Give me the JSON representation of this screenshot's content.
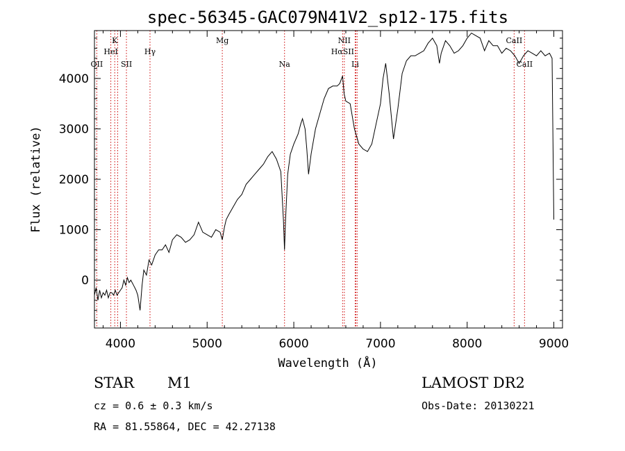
{
  "chart_data": {
    "type": "line",
    "title": "spec-56345-GAC079N41V2_sp12-175.fits",
    "xlabel": "Wavelength (Å)",
    "ylabel": "Flux (relative)",
    "xlim": [
      3700,
      9100
    ],
    "ylim": [
      -950,
      4950
    ],
    "xticks": [
      4000,
      5000,
      6000,
      7000,
      8000,
      9000
    ],
    "yticks": [
      0,
      1000,
      2000,
      3000,
      4000
    ],
    "grid": false,
    "line_color": "#000000",
    "marker_color": "#cc0000",
    "series": [
      {
        "x": [
          3700,
          3720,
          3740,
          3760,
          3780,
          3800,
          3820,
          3840,
          3860,
          3880,
          3900,
          3920,
          3940,
          3960,
          3980,
          4000,
          4020,
          4040,
          4060,
          4080,
          4100,
          4120,
          4150,
          4180,
          4200,
          4226,
          4250,
          4270,
          4300,
          4330,
          4360,
          4400,
          4440,
          4480,
          4520,
          4560,
          4600,
          4650,
          4700,
          4750,
          4800,
          4850,
          4900,
          4950,
          5000,
          5050,
          5100,
          5150,
          5175,
          5200,
          5220,
          5250,
          5300,
          5350,
          5400,
          5450,
          5500,
          5550,
          5600,
          5650,
          5700,
          5750,
          5800,
          5850,
          5880,
          5893,
          5905,
          5930,
          5960,
          6000,
          6050,
          6080,
          6100,
          6130,
          6150,
          6170,
          6200,
          6250,
          6300,
          6350,
          6400,
          6450,
          6500,
          6530,
          6563,
          6580,
          6600,
          6650,
          6700,
          6750,
          6800,
          6850,
          6900,
          6950,
          7000,
          7030,
          7060,
          7100,
          7150,
          7200,
          7250,
          7300,
          7350,
          7400,
          7450,
          7500,
          7550,
          7600,
          7650,
          7680,
          7700,
          7750,
          7800,
          7850,
          7900,
          7950,
          8000,
          8050,
          8100,
          8150,
          8200,
          8250,
          8300,
          8350,
          8400,
          8450,
          8500,
          8550,
          8600,
          8650,
          8700,
          8750,
          8800,
          8850,
          8900,
          8950,
          8980,
          9000
        ],
        "y": [
          -300,
          -150,
          -400,
          -200,
          -350,
          -250,
          -300,
          -200,
          -350,
          -250,
          -250,
          -300,
          -200,
          -300,
          -250,
          -200,
          -150,
          0,
          -100,
          50,
          -50,
          0,
          -100,
          -200,
          -300,
          -600,
          -100,
          200,
          100,
          400,
          300,
          500,
          600,
          600,
          700,
          550,
          800,
          900,
          850,
          750,
          800,
          900,
          1150,
          950,
          900,
          850,
          1000,
          950,
          800,
          1050,
          1200,
          1300,
          1450,
          1600,
          1700,
          1900,
          2000,
          2100,
          2200,
          2300,
          2450,
          2550,
          2400,
          2150,
          1200,
          600,
          1200,
          2100,
          2500,
          2700,
          2900,
          3100,
          3200,
          3000,
          2600,
          2100,
          2500,
          3000,
          3300,
          3600,
          3800,
          3850,
          3850,
          3900,
          4050,
          3700,
          3550,
          3500,
          3000,
          2700,
          2600,
          2550,
          2700,
          3100,
          3500,
          4000,
          4300,
          3700,
          2800,
          3400,
          4100,
          4350,
          4450,
          4450,
          4500,
          4550,
          4700,
          4800,
          4650,
          4300,
          4500,
          4750,
          4650,
          4500,
          4550,
          4650,
          4800,
          4900,
          4850,
          4800,
          4550,
          4750,
          4650,
          4650,
          4500,
          4600,
          4550,
          4450,
          4300,
          4450,
          4550,
          4500,
          4450,
          4550,
          4450,
          4500,
          4400,
          1200
        ]
      }
    ],
    "line_markers": [
      {
        "label": "K",
        "x": 3934,
        "tier": 1
      },
      {
        "label": "HeI",
        "x": 3889,
        "tier": 2
      },
      {
        "label": "OII",
        "x": 3727,
        "tier": 3
      },
      {
        "label": "SII",
        "x": 4069,
        "tier": 3
      },
      {
        "label": "Hγ",
        "x": 4341,
        "tier": 2
      },
      {
        "label": "Mg",
        "x": 5175,
        "tier": 1
      },
      {
        "label": "Na",
        "x": 5893,
        "tier": 3
      },
      {
        "label": "NII",
        "x": 6583,
        "tier": 1
      },
      {
        "label": "HαSII",
        "x": 6563,
        "tier": 2
      },
      {
        "label": "Li",
        "x": 6708,
        "tier": 3
      },
      {
        "label": "CaII",
        "x": 8542,
        "tier": 1
      },
      {
        "label": "CaII",
        "x": 8662,
        "tier": 3
      }
    ],
    "extra_marker_lines": [
      3968,
      6716,
      6731
    ]
  },
  "info": {
    "object_class": "STAR",
    "subclass": "M1",
    "survey": "LAMOST DR2",
    "cz": "cz = 0.6 ± 0.3 km/s",
    "obs_date": "Obs-Date: 20130221",
    "radec": "RA =  81.55864, DEC =  42.27138"
  }
}
